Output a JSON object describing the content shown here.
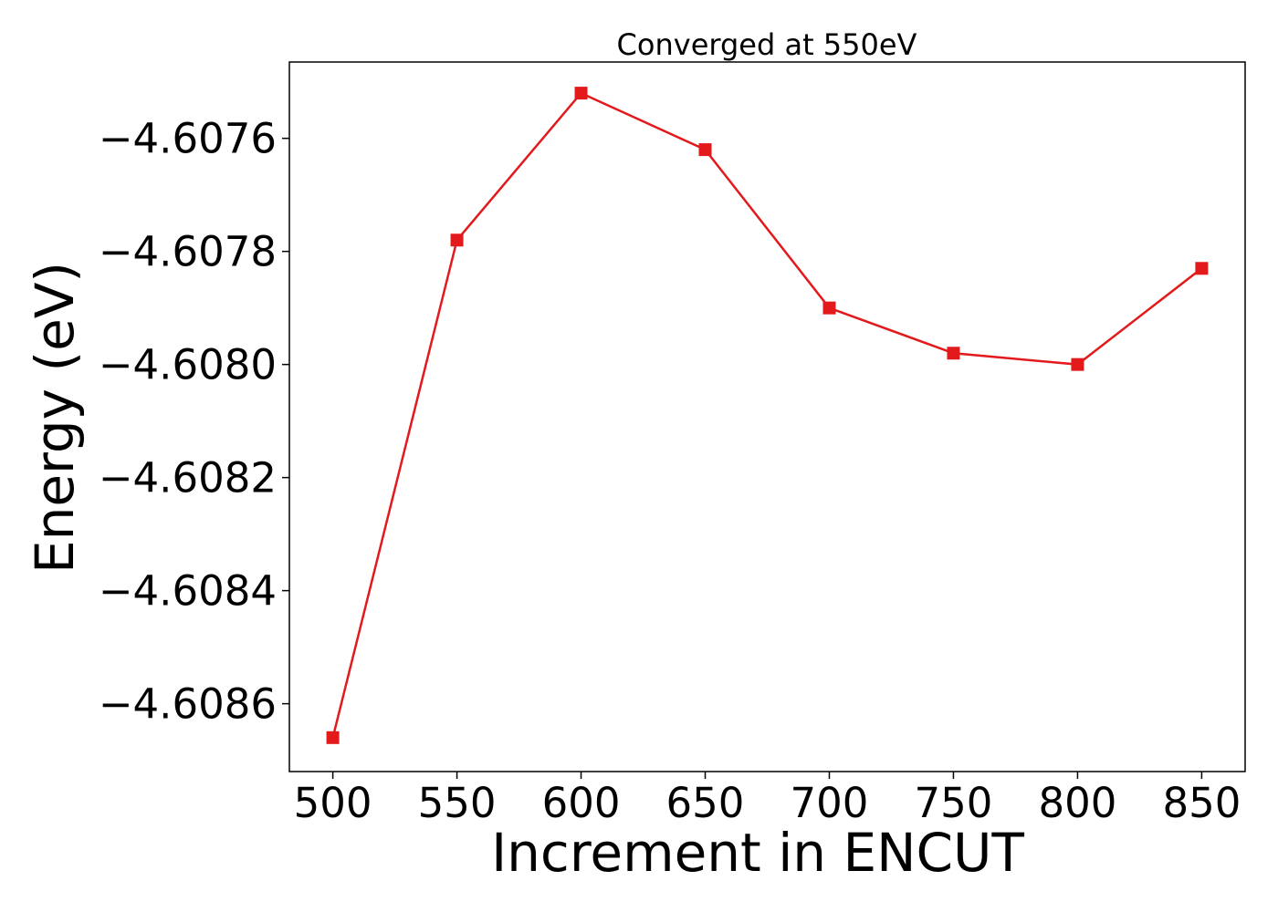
{
  "chart_data": {
    "type": "line",
    "title": "Converged at 550eV",
    "xlabel": "Increment in ENCUT",
    "ylabel": "Energy (eV)",
    "x": [
      500,
      550,
      600,
      650,
      700,
      750,
      800,
      850
    ],
    "series": [
      {
        "values": [
          -4.60866,
          -4.60778,
          -4.60752,
          -4.60762,
          -4.6079,
          -4.60798,
          -4.608,
          -4.60783
        ],
        "color": "#e31a1c",
        "marker": "square"
      }
    ],
    "xticks": [
      500,
      550,
      600,
      650,
      700,
      750,
      800,
      850
    ],
    "xtick_labels": [
      "500",
      "550",
      "600",
      "650",
      "700",
      "750",
      "800",
      "850"
    ],
    "yticks": [
      -4.6086,
      -4.6084,
      -4.6082,
      -4.608,
      -4.6078,
      -4.6076
    ],
    "ytick_labels": [
      "−4.6086",
      "−4.6084",
      "−4.6082",
      "−4.6080",
      "−4.6078",
      "−4.6076"
    ],
    "xlim": [
      482.5,
      867.5
    ],
    "ylim": [
      -4.60872,
      -4.607465
    ],
    "grid": false,
    "legend": "none"
  }
}
